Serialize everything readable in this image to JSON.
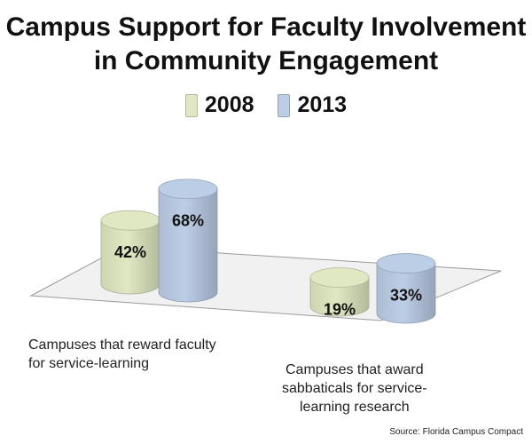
{
  "chart_data": {
    "type": "bar",
    "title_line1": "Campus Support for Faculty Involvement",
    "title_line2": "in Community Engagement",
    "categories": [
      [
        "Campuses that reward faculty",
        "for service-learning"
      ],
      [
        "Campuses that award",
        "sabbaticals for service-",
        "learning research"
      ]
    ],
    "series": [
      {
        "name": "2008",
        "values": [
          42,
          19
        ],
        "labels": [
          "42%",
          "19%"
        ],
        "color": "#dfe8c2"
      },
      {
        "name": "2013",
        "values": [
          68,
          33
        ],
        "labels": [
          "68%",
          "33%"
        ],
        "color": "#bccde6"
      }
    ],
    "ylim": [
      0,
      100
    ],
    "source": "Source: Florida Campus Compact"
  }
}
